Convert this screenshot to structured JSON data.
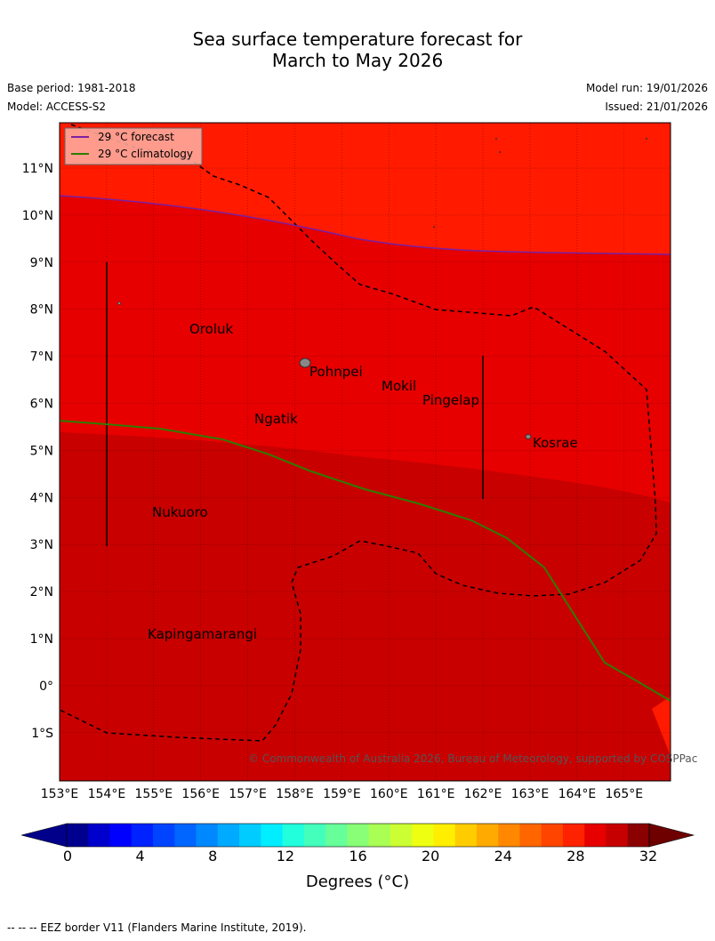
{
  "title_line1": "Sea surface temperature forecast for",
  "title_line2": "March to May 2026",
  "base_period": "Base period: 1981-2018",
  "model": "Model: ACCESS-S2",
  "model_run": "Model run: 19/01/2026",
  "issued": "Issued: 21/01/2026",
  "legend": {
    "forecast_label": "29 °C  forecast",
    "climatology_label": "29 °C  climatology",
    "forecast_color": "#7b1fa2",
    "climatology_color": "#2e7d00"
  },
  "lon_ticks": [
    "153°E",
    "154°E",
    "155°E",
    "156°E",
    "157°E",
    "158°E",
    "159°E",
    "160°E",
    "161°E",
    "162°E",
    "163°E",
    "164°E",
    "165°E"
  ],
  "lat_ticks": [
    "11°N",
    "10°N",
    "9°N",
    "8°N",
    "7°N",
    "6°N",
    "5°N",
    "4°N",
    "3°N",
    "2°N",
    "1°N",
    "0°",
    "1°S"
  ],
  "places": [
    {
      "name": "Oroluk"
    },
    {
      "name": "Pohnpei"
    },
    {
      "name": "Mokil"
    },
    {
      "name": "Pingelap"
    },
    {
      "name": "Ngatik"
    },
    {
      "name": "Kosrae"
    },
    {
      "name": "Nukuoro"
    },
    {
      "name": "Kapingamarangi"
    }
  ],
  "copyright": "© Commonwealth of Australia 2026, Bureau of Meteorology, supported by COSPPac",
  "colorbar": {
    "labels": [
      "0",
      "4",
      "8",
      "12",
      "16",
      "20",
      "24",
      "28",
      "32"
    ],
    "title": "Degrees (°C)",
    "colors": [
      "#00008f",
      "#0000cc",
      "#0000ff",
      "#0022ff",
      "#0044ff",
      "#0066ff",
      "#0088ff",
      "#00aaff",
      "#00ccff",
      "#00eeff",
      "#22ffdd",
      "#44ffbb",
      "#66ff99",
      "#88ff77",
      "#aaff55",
      "#ccff33",
      "#eeff11",
      "#ffee00",
      "#ffcc00",
      "#ffaa00",
      "#ff8800",
      "#ff6600",
      "#ff4400",
      "#ff2200",
      "#e60000",
      "#c60000",
      "#8b0000"
    ]
  },
  "footer": "--  --  -- EEZ border V11 (Flanders Marine Institute, 2019)."
}
